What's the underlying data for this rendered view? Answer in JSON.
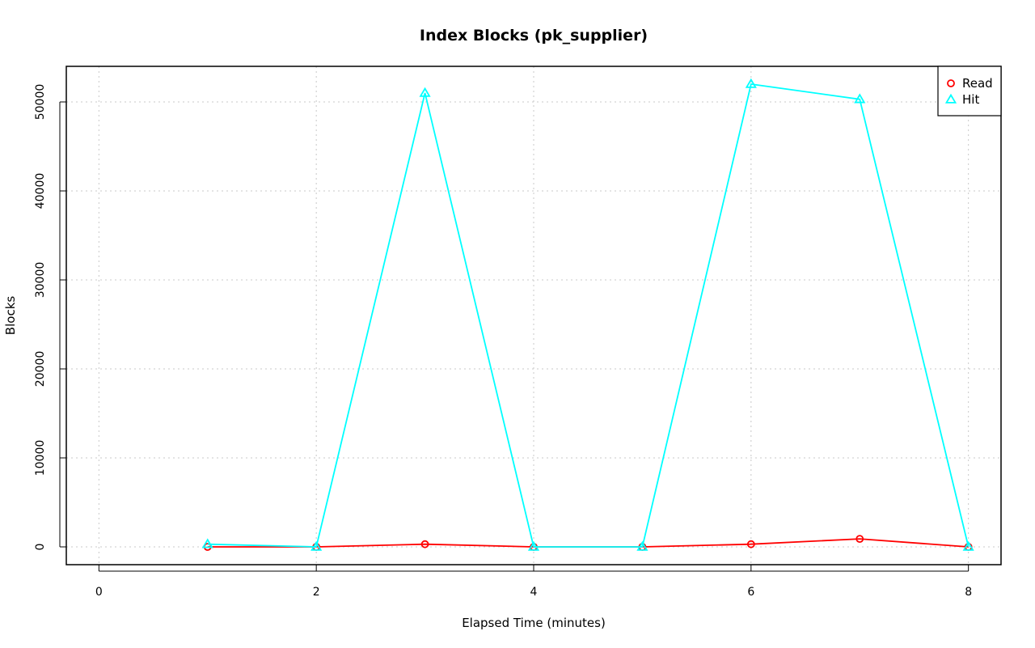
{
  "chart_data": {
    "type": "line",
    "title": "Index Blocks (pk_supplier)",
    "xlabel": "Elapsed Time (minutes)",
    "ylabel": "Blocks",
    "xlim": [
      -0.3,
      8.3
    ],
    "ylim": [
      -2000,
      54000
    ],
    "x_ticks": [
      0,
      2,
      4,
      6,
      8
    ],
    "y_ticks": [
      0,
      10000,
      20000,
      30000,
      40000,
      50000
    ],
    "grid": true,
    "legend_position": "top-right",
    "series": [
      {
        "name": "Read",
        "color": "#ff0000",
        "marker": "circle",
        "x": [
          1,
          2,
          3,
          4,
          5,
          6,
          7,
          8
        ],
        "y": [
          0,
          0,
          300,
          0,
          0,
          300,
          900,
          0
        ]
      },
      {
        "name": "Hit",
        "color": "#00ffff",
        "marker": "triangle",
        "x": [
          1,
          2,
          3,
          4,
          5,
          6,
          7,
          8
        ],
        "y": [
          300,
          0,
          51000,
          0,
          0,
          52000,
          50300,
          0
        ]
      }
    ]
  }
}
